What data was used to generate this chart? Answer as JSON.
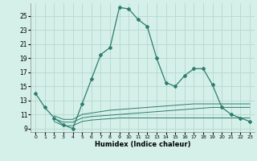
{
  "main_line_x": [
    0,
    1,
    2,
    3,
    4,
    5,
    6,
    7,
    8,
    9,
    10,
    11,
    12,
    13,
    14,
    15,
    16,
    17,
    18,
    19,
    20,
    21,
    22,
    23
  ],
  "main_line_y": [
    14.0,
    12.0,
    10.5,
    9.5,
    9.0,
    12.5,
    16.0,
    19.5,
    20.5,
    26.2,
    26.0,
    24.5,
    23.5,
    19.0,
    15.5,
    15.0,
    16.5,
    17.5,
    17.5,
    15.2,
    12.0,
    11.0,
    10.5,
    10.0
  ],
  "flat_line1_x": [
    2,
    3,
    4,
    5,
    6,
    7,
    8,
    9,
    10,
    11,
    12,
    13,
    14,
    15,
    16,
    17,
    18,
    19,
    20,
    21,
    22,
    23
  ],
  "flat_line1_y": [
    10.8,
    10.3,
    10.3,
    11.0,
    11.2,
    11.4,
    11.6,
    11.7,
    11.8,
    11.9,
    12.0,
    12.1,
    12.2,
    12.3,
    12.4,
    12.5,
    12.5,
    12.5,
    12.5,
    12.5,
    12.5,
    12.5
  ],
  "flat_line2_x": [
    2,
    3,
    4,
    5,
    6,
    7,
    8,
    9,
    10,
    11,
    12,
    13,
    14,
    15,
    16,
    17,
    18,
    19,
    20,
    21,
    22,
    23
  ],
  "flat_line2_y": [
    10.4,
    9.9,
    9.9,
    10.5,
    10.7,
    10.8,
    10.9,
    11.0,
    11.1,
    11.2,
    11.3,
    11.4,
    11.5,
    11.6,
    11.7,
    11.8,
    11.9,
    12.0,
    12.0,
    12.0,
    12.0,
    12.0
  ],
  "flat_line3_x": [
    2,
    3,
    4,
    5,
    6,
    7,
    8,
    9,
    10,
    11,
    12,
    13,
    14,
    15,
    16,
    17,
    18,
    19,
    20,
    21,
    22,
    23
  ],
  "flat_line3_y": [
    10.0,
    9.4,
    9.4,
    10.0,
    10.2,
    10.3,
    10.4,
    10.5,
    10.5,
    10.5,
    10.5,
    10.5,
    10.5,
    10.5,
    10.5,
    10.5,
    10.5,
    10.5,
    10.5,
    10.5,
    10.5,
    10.5
  ],
  "line_color": "#2e7d6e",
  "bg_color": "#d4f0e8",
  "grid_color": "#b8d8ce",
  "xlabel": "Humidex (Indice chaleur)",
  "ylabel_ticks": [
    9,
    11,
    13,
    15,
    17,
    19,
    21,
    23,
    25
  ],
  "xlim": [
    -0.5,
    23.5
  ],
  "ylim": [
    8.5,
    26.8
  ],
  "xticks": [
    0,
    1,
    2,
    3,
    4,
    5,
    6,
    7,
    8,
    9,
    10,
    11,
    12,
    13,
    14,
    15,
    16,
    17,
    18,
    19,
    20,
    21,
    22,
    23
  ],
  "xticklabels": [
    "0",
    "1",
    "2",
    "3",
    "4",
    "5",
    "6",
    "7",
    "8",
    "9",
    "10",
    "11",
    "12",
    "13",
    "14",
    "15",
    "16",
    "17",
    "18",
    "19",
    "20",
    "21",
    "22",
    "23"
  ],
  "figsize": [
    3.2,
    2.0
  ],
  "dpi": 100
}
